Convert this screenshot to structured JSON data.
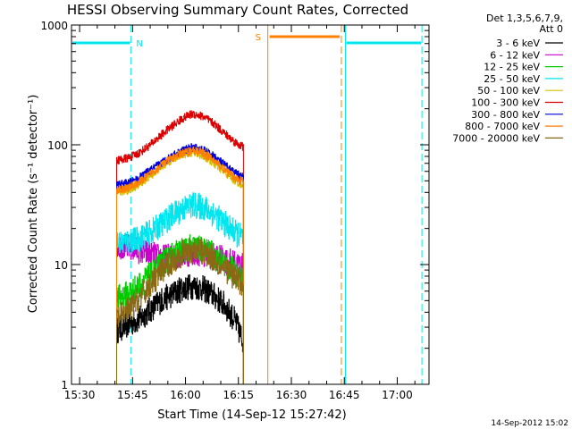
{
  "chart_data": {
    "type": "line",
    "title": "HESSI Observing Summary Count Rates, Corrected",
    "xlabel": "Start Time (14-Sep-12 15:27:42)",
    "ylabel": "Corrected Count Rate (s⁻¹ detector⁻¹)",
    "y_scale": "log",
    "ylim": [
      1,
      1000
    ],
    "xlim": [
      "15:27:42",
      "17:09:00"
    ],
    "x_ticks": [
      "15:30",
      "15:45",
      "16:00",
      "16:15",
      "16:30",
      "16:45",
      "17:00"
    ],
    "y_ticks": [
      "1",
      "10",
      "100",
      "1000"
    ],
    "legend_header": [
      "Det 1,3,5,6,7,9,",
      "Att 0"
    ],
    "legend_position": "right",
    "timestamp": "14-Sep-2012 15:02",
    "series": [
      {
        "name": "3 - 6 keV",
        "color": "#000000",
        "x": [
          "15:40:30",
          "15:44",
          "15:47",
          "15:50",
          "15:53",
          "15:56",
          "15:59",
          "16:02",
          "16:05",
          "16:08",
          "16:11",
          "16:14",
          "16:16:30"
        ],
        "y": [
          2.8,
          3.2,
          3.5,
          4.2,
          5.0,
          5.6,
          6.3,
          6.6,
          6.3,
          5.5,
          4.6,
          3.4,
          2.2
        ]
      },
      {
        "name": "6 - 12 keV",
        "color": "#cc00cc",
        "x": [
          "15:40:30",
          "15:44",
          "15:47",
          "15:50",
          "15:53",
          "15:56",
          "15:59",
          "16:02",
          "16:05",
          "16:08",
          "16:11",
          "16:14",
          "16:16:30"
        ],
        "y": [
          14.5,
          14,
          13,
          12.2,
          11.5,
          11.6,
          12,
          12.6,
          12.4,
          11.8,
          11,
          10.2,
          9.6
        ]
      },
      {
        "name": "12 - 25 keV",
        "color": "#00cc00",
        "x": [
          "15:40:30",
          "15:44",
          "15:47",
          "15:50",
          "15:53",
          "15:56",
          "15:59",
          "16:02",
          "16:05",
          "16:08",
          "16:11",
          "16:14",
          "16:16:30"
        ],
        "y": [
          5.2,
          5.8,
          6.8,
          8.2,
          10,
          11.8,
          13.2,
          14,
          13.4,
          12,
          10.2,
          8.6,
          7.5
        ]
      },
      {
        "name": "25 - 50 keV",
        "color": "#00e5ee",
        "x": [
          "15:40:30",
          "15:44",
          "15:47",
          "15:50",
          "15:53",
          "15:56",
          "15:59",
          "16:02",
          "16:05",
          "16:08",
          "16:11",
          "16:14",
          "16:16:30"
        ],
        "y": [
          15,
          15.5,
          16.5,
          18.5,
          21.5,
          25.5,
          29,
          31.5,
          30,
          26.5,
          22,
          18.5,
          16.5
        ]
      },
      {
        "name": "50 - 100 keV",
        "color": "#d4c000",
        "x": [
          "15:40:30",
          "15:44",
          "15:47",
          "15:50",
          "15:53",
          "15:56",
          "15:59",
          "16:02",
          "16:05",
          "16:08",
          "16:11",
          "16:14",
          "16:16:30"
        ],
        "y": [
          40,
          42,
          47,
          55,
          65,
          75,
          83,
          87,
          81,
          70,
          59,
          50,
          46
        ]
      },
      {
        "name": "100 - 300 keV",
        "color": "#dd0000",
        "x": [
          "15:40:30",
          "15:44",
          "15:47",
          "15:50",
          "15:53",
          "15:56",
          "15:59",
          "16:02",
          "16:05",
          "16:08",
          "16:11",
          "16:14",
          "16:16:30"
        ],
        "y": [
          74,
          78,
          86,
          100,
          120,
          142,
          165,
          182,
          172,
          150,
          125,
          105,
          95
        ]
      },
      {
        "name": "300 - 800 keV",
        "color": "#0000dd",
        "x": [
          "15:40:30",
          "15:44",
          "15:47",
          "15:50",
          "15:53",
          "15:56",
          "15:59",
          "16:02",
          "16:05",
          "16:08",
          "16:11",
          "16:14",
          "16:16:30"
        ],
        "y": [
          46,
          48,
          53,
          61,
          70,
          80,
          89,
          95,
          90,
          80,
          68,
          58,
          53
        ]
      },
      {
        "name": "800 - 7000 keV",
        "color": "#ff7f00",
        "x": [
          "15:40:30",
          "15:44",
          "15:47",
          "15:50",
          "15:53",
          "15:56",
          "15:59",
          "16:02",
          "16:05",
          "16:08",
          "16:11",
          "16:14",
          "16:16:30"
        ],
        "y": [
          42,
          44,
          49,
          57,
          67,
          77,
          85,
          90,
          85,
          74,
          62,
          53,
          49
        ]
      },
      {
        "name": "7000 - 20000 keV",
        "color": "#8b6914",
        "x": [
          "15:40:30",
          "15:44",
          "15:47",
          "15:50",
          "15:53",
          "15:56",
          "15:59",
          "16:02",
          "16:05",
          "16:08",
          "16:11",
          "16:14",
          "16:16:30"
        ],
        "y": [
          3.5,
          4.2,
          5.3,
          6.8,
          8.6,
          10.6,
          12.4,
          13.4,
          12.8,
          11.2,
          9.3,
          7.8,
          6.8
        ]
      }
    ],
    "annotations": [
      {
        "label": "N",
        "kind": "night",
        "color": "#00e5ee",
        "start": "15:27:42",
        "end": "15:44:30"
      },
      {
        "label": "",
        "kind": "night",
        "color": "#00e5ee",
        "start": "16:45:20",
        "end": "17:07:00"
      },
      {
        "label": "S",
        "kind": "saa",
        "color": "#ff7f00",
        "start": "16:23:20",
        "end": "16:44:10"
      }
    ]
  }
}
